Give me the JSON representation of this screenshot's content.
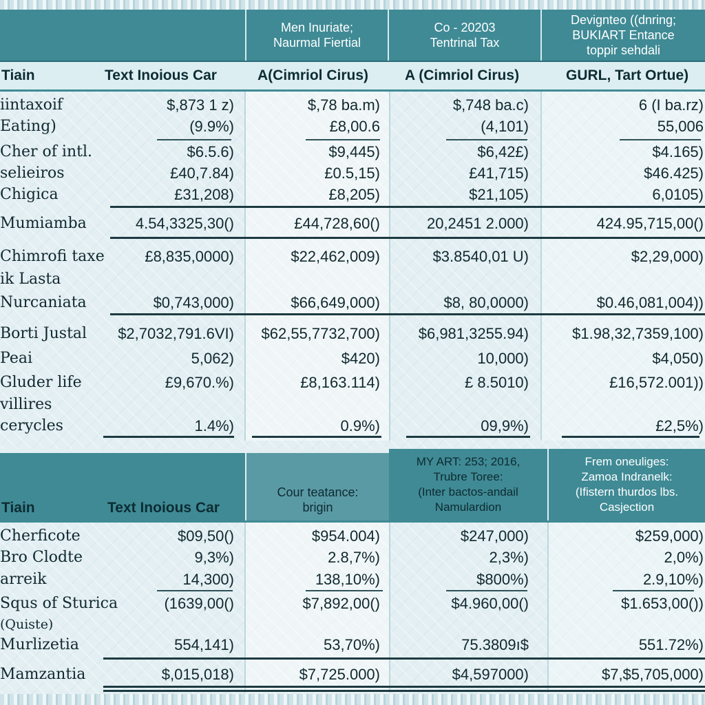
{
  "table1": {
    "headers": [
      "",
      "Men Inuriate;\nNaurmal Fiertial",
      "Co - 20203\nTentrinal Tax",
      "Devignteo ((dnring;\nBUKIART Entance\ntoppir sehdali"
    ],
    "subheaders": [
      "Tiain",
      "Text Inoious Car",
      "A(Cimriol Cirus)",
      "A (Cimriol Cirus)",
      "GURL, Tart Ortue)"
    ],
    "rows": [
      {
        "label": "iintaxoif",
        "values": [
          "$,873 1 z)",
          "$,78 ba.m)",
          "$,748 ba.c)",
          "6 (I ba.rz)"
        ]
      },
      {
        "label": "Eating)",
        "values": [
          "(9.9%)",
          "£8,00.6",
          "(4,101)",
          "55,006"
        ]
      },
      {
        "label": "Cher of intl.",
        "values": [
          "$6.5.6)",
          "$9,445)",
          "$6,42£)",
          "$4.165)"
        ]
      },
      {
        "label": "selieiros",
        "values": [
          "£40,7.84)",
          "£0.5,15)",
          "£41,715)",
          "$46.425)"
        ]
      },
      {
        "label": "Chigica",
        "values": [
          "£31,208)",
          "£8,205)",
          "$21,105)",
          "6,0105)"
        ]
      },
      {
        "label": "Mumiamba",
        "values": [
          "4.54,3325,30()",
          "£44,728,60()",
          "20,2451 2.000)",
          "424.95,715,00()"
        ]
      },
      {
        "label": "Chimrofi taxe",
        "values": [
          "£8,835,0000)",
          "$22,462,009)",
          "$3.8540,01 U)",
          "$2,29,000)"
        ]
      },
      {
        "label": "ik Lasta",
        "values": [
          "",
          "",
          "",
          ""
        ]
      },
      {
        "label": "Nurcaniata",
        "values": [
          "$0,743,000)",
          "$66,649,000)",
          "$8, 80,0000)",
          "$0.46,081,004))"
        ]
      },
      {
        "label": "Borti Justal",
        "values": [
          "$2,7032,791.6VI)",
          "$62,55,7732,700)",
          "$6,981,3255.94)",
          "$1.98,32,7359,100)"
        ]
      },
      {
        "label": "Peai",
        "values": [
          "5,062)",
          "$420)",
          "10,000)",
          "$4,050)"
        ]
      },
      {
        "label": "Gluder life",
        "values": [
          "£9,670.%)",
          "£8,163.114)",
          "£ 8.5010)",
          "£16,572.001))"
        ]
      },
      {
        "label": "villires",
        "values": [
          "",
          "",
          "",
          ""
        ]
      },
      {
        "label": "cerycles",
        "values": [
          "1.4%)",
          "0.9%)",
          "09,9%)",
          "£2,5%)"
        ]
      }
    ]
  },
  "table2": {
    "headers": [
      "",
      "Cour teatance:\nbrigin",
      "MY ART: 253; 2016,\nTrubre Toree:\n(Inter bactos-andail\nNamulardion",
      "Frem oneuliges:\nZamoa Indranelk:\n(Ifistern thurdos lbs.\nCasjection"
    ],
    "subheaders": [
      "Tiain",
      "Text Inoious Car"
    ],
    "rows": [
      {
        "label": "Cherficote",
        "values": [
          "$09,50()",
          "$954.004)",
          "$247,000)",
          "$259,000)"
        ]
      },
      {
        "label": "Bro Clodte",
        "values": [
          "9,3%)",
          "2.8,7%)",
          "2,3%)",
          "2,0%)"
        ]
      },
      {
        "label": "arreik",
        "values": [
          "14,300)",
          "138,10%)",
          "$800%)",
          "2.9,10%)"
        ]
      },
      {
        "label": "Squs of Sturica",
        "values": [
          "(1639,00()",
          "$7,892,00()",
          "$4.960,00()",
          "$1.653,00())"
        ]
      },
      {
        "label": "(Quiste)",
        "values": [
          "",
          "",
          "",
          ""
        ]
      },
      {
        "label": "Murlizetia",
        "values": [
          "554,141)",
          "53,70%)",
          "75.3809ı$",
          "551.72%)"
        ]
      },
      {
        "label": "Mamzantia",
        "values": [
          "$,015,018)",
          "$7,725.000)",
          "$4,597000)",
          "$7,$5,705,000)"
        ]
      }
    ]
  }
}
